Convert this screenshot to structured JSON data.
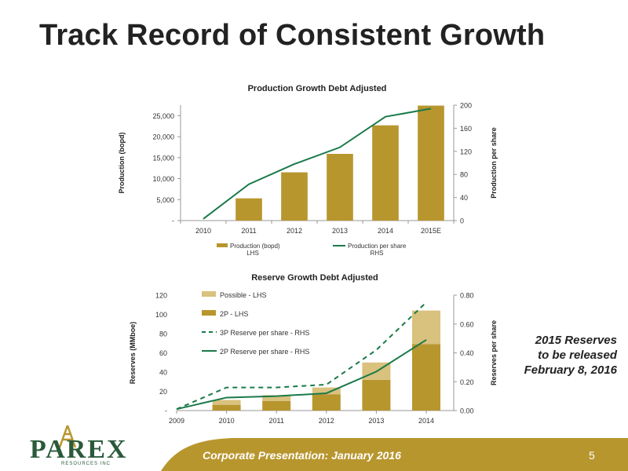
{
  "page": {
    "title": "Track Record of Consistent Growth",
    "note_lines": [
      "2015 Reserves",
      "to be released",
      "February  8, 2016"
    ],
    "footer_text": "Corporate Presentation: January 2016",
    "page_number": "5",
    "logo_text": "PAREX",
    "logo_subtext": "RESOURCES INC"
  },
  "colors": {
    "bar": "#b8962e",
    "bar_light": "#d9c17e",
    "line": "#1a7a4a",
    "footer": "#b8962e",
    "axis": "#999999"
  },
  "chart_data": [
    {
      "type": "bar",
      "title": "Production Growth Debt Adjusted",
      "categories": [
        "2010",
        "2011",
        "2012",
        "2013",
        "2014",
        "2015E"
      ],
      "ylabel": "Production (bopd)",
      "y2label": "Production per share",
      "ylim": [
        0,
        27500
      ],
      "y_ticks": [
        0,
        5000,
        10000,
        15000,
        20000,
        25000
      ],
      "y_tick_labels": [
        "-",
        "5,000",
        "10,000",
        "15,000",
        "20,000",
        "25,000"
      ],
      "y2lim": [
        0,
        200
      ],
      "y2_ticks": [
        0,
        40,
        80,
        120,
        160,
        200
      ],
      "y2_tick_labels": [
        "0",
        "40",
        "80",
        "120",
        "160",
        "200"
      ],
      "series": [
        {
          "name": "Production (bopd) LHS",
          "legend_lines": [
            "Production (bopd)",
            "LHS"
          ],
          "kind": "bar",
          "axis": "left",
          "values": [
            0,
            5300,
            11500,
            15900,
            22700,
            27400
          ]
        },
        {
          "name": "Production per share RHS",
          "legend_lines": [
            "Production per share",
            "RHS"
          ],
          "kind": "line",
          "axis": "right",
          "values": [
            3,
            63,
            98,
            127,
            180,
            194
          ]
        }
      ],
      "legend": "bottom"
    },
    {
      "type": "bar",
      "title": "Reserve Growth Debt Adjusted",
      "categories": [
        "2009",
        "2010",
        "2011",
        "2012",
        "2013",
        "2014"
      ],
      "ylabel": "Reserves (MMboe)",
      "y2label": "Reserves per share",
      "ylim": [
        0,
        120
      ],
      "y_ticks": [
        0,
        20,
        40,
        60,
        80,
        100,
        120
      ],
      "y_tick_labels": [
        "-",
        "20",
        "40",
        "60",
        "80",
        "100",
        "120"
      ],
      "y2lim": [
        0,
        0.8
      ],
      "y2_ticks": [
        0,
        0.2,
        0.4,
        0.6,
        0.8
      ],
      "y2_tick_labels": [
        "0.00",
        "0.20",
        "0.40",
        "0.60",
        "0.80"
      ],
      "series": [
        {
          "name": "2P - LHS",
          "kind": "stacked-bar",
          "axis": "left",
          "values": [
            0,
            6,
            10,
            17,
            32,
            69
          ]
        },
        {
          "name": "Possible - LHS",
          "kind": "stacked-bar",
          "axis": "left",
          "values": [
            0,
            5,
            6,
            7,
            18,
            35
          ]
        },
        {
          "name": "3P Reserve per share - RHS",
          "kind": "dashed-line",
          "axis": "right",
          "values": [
            0.01,
            0.16,
            0.16,
            0.18,
            0.42,
            0.75
          ]
        },
        {
          "name": "2P Reserve per share - RHS",
          "kind": "line",
          "axis": "right",
          "values": [
            0.01,
            0.09,
            0.1,
            0.12,
            0.27,
            0.49
          ]
        }
      ],
      "legend_order": [
        "Possible - LHS",
        "2P - LHS",
        "3P Reserve per share - RHS",
        "2P Reserve per share - RHS"
      ],
      "legend": "top-left inside"
    }
  ]
}
